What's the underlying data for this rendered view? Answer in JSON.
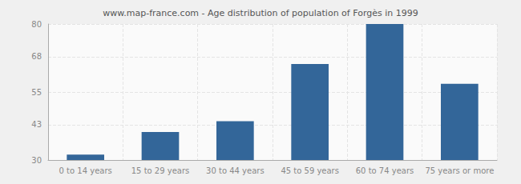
{
  "chart_data": {
    "type": "bar",
    "title": "www.map-france.com - Age distribution of population of Forgès in 1999",
    "categories": [
      "0 to 14 years",
      "15 to 29 years",
      "30 to 44 years",
      "45 to 59 years",
      "60 to 74 years",
      "75 years or more"
    ],
    "values": [
      32,
      40.3,
      44.3,
      65.3,
      80,
      58
    ],
    "color": "#336699",
    "ylim": [
      30,
      80
    ],
    "yticks": [
      30,
      43,
      55,
      68,
      80
    ],
    "grid": true
  }
}
